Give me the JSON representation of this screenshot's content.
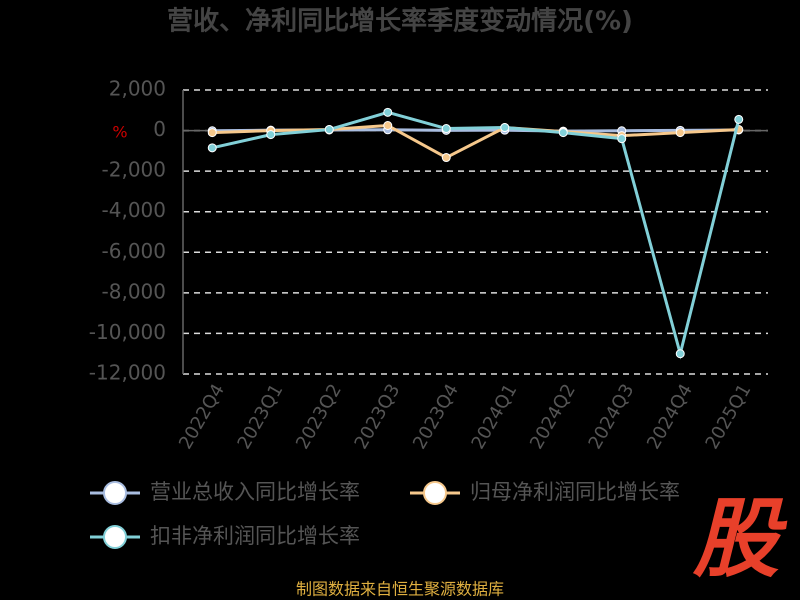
{
  "chart_data": {
    "type": "line",
    "title": "营收、净利同比增长率季度变动情况(%)",
    "y_label": "%",
    "categories": [
      "2022Q4",
      "2023Q1",
      "2023Q2",
      "2023Q3",
      "2023Q4",
      "2024Q1",
      "2024Q2",
      "2024Q3",
      "2024Q4",
      "2025Q1"
    ],
    "series": [
      {
        "name": "营业总收入同比增长率",
        "color": "#a9bde0",
        "values": [
          -10,
          20,
          30,
          40,
          10,
          20,
          -30,
          -10,
          10,
          30
        ]
      },
      {
        "name": "归母净利润同比增长率",
        "color": "#f6c88c",
        "values": [
          -100,
          0,
          50,
          250,
          -1330,
          150,
          -50,
          -250,
          -100,
          50
        ]
      },
      {
        "name": "扣非净利润同比增长率",
        "color": "#82d0d8",
        "values": [
          -850,
          -200,
          50,
          900,
          100,
          150,
          -100,
          -400,
          -11000,
          550
        ]
      }
    ],
    "ylim": [
      -12000,
      2000
    ],
    "yticks": [
      {
        "value": 2000,
        "label": "2,000"
      },
      0,
      {
        "value": -2000,
        "label": "-2,000"
      },
      {
        "value": -4000,
        "label": "-4,000"
      },
      {
        "value": -6000,
        "label": "-6,000"
      },
      {
        "value": -8000,
        "label": "-8,000"
      },
      {
        "value": -10000,
        "label": "-10,000"
      },
      {
        "value": -12000,
        "label": "-12,000"
      }
    ],
    "grid": true,
    "legend_position": "bottom",
    "source": "制图数据来自恒生聚源数据库",
    "logo": "股"
  }
}
